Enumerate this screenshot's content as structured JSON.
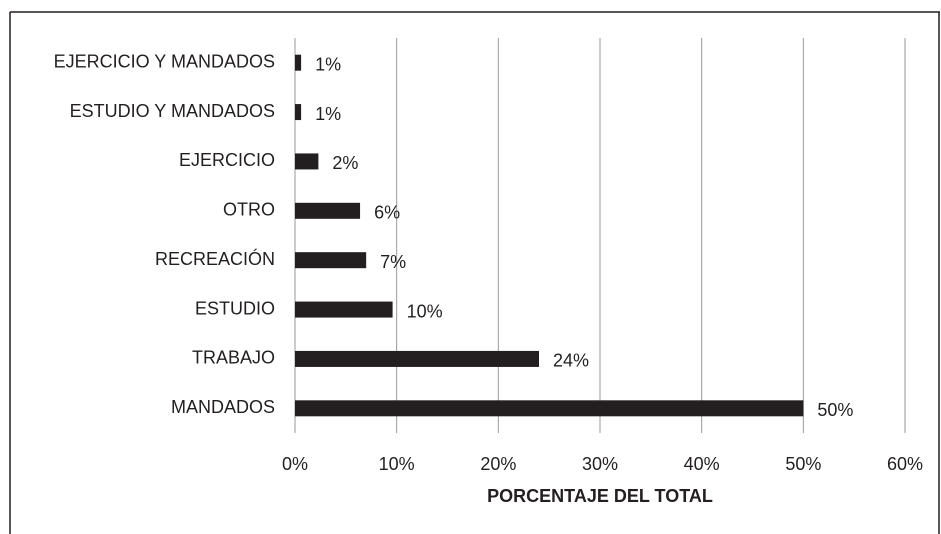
{
  "chart_data": {
    "type": "hbar",
    "categories": [
      "EJERCICIO Y MANDADOS",
      "ESTUDIO Y MANDADOS",
      "EJERCICIO",
      "OTRO",
      "RECREACIÓN",
      "ESTUDIO",
      "TRABAJO",
      "MANDADOS"
    ],
    "values": [
      0.6,
      0.6,
      2.3,
      6.4,
      7,
      9.6,
      24,
      50
    ],
    "value_labels": [
      "1%",
      "1%",
      "2%",
      "6%",
      "7%",
      "10%",
      "24%",
      "50%"
    ],
    "color": "#231f20",
    "xlim": [
      0,
      60
    ],
    "xticks": [
      {
        "value": 0,
        "label": "0%"
      },
      {
        "value": 10,
        "label": "10%"
      },
      {
        "value": 20,
        "label": "20%"
      },
      {
        "value": 30,
        "label": "30%"
      },
      {
        "value": 40,
        "label": "40%"
      },
      {
        "value": 50,
        "label": "50%"
      },
      {
        "value": 60,
        "label": "60%"
      }
    ],
    "x_label": "PORCENTAJE DEL TOTAL",
    "grid": true
  }
}
